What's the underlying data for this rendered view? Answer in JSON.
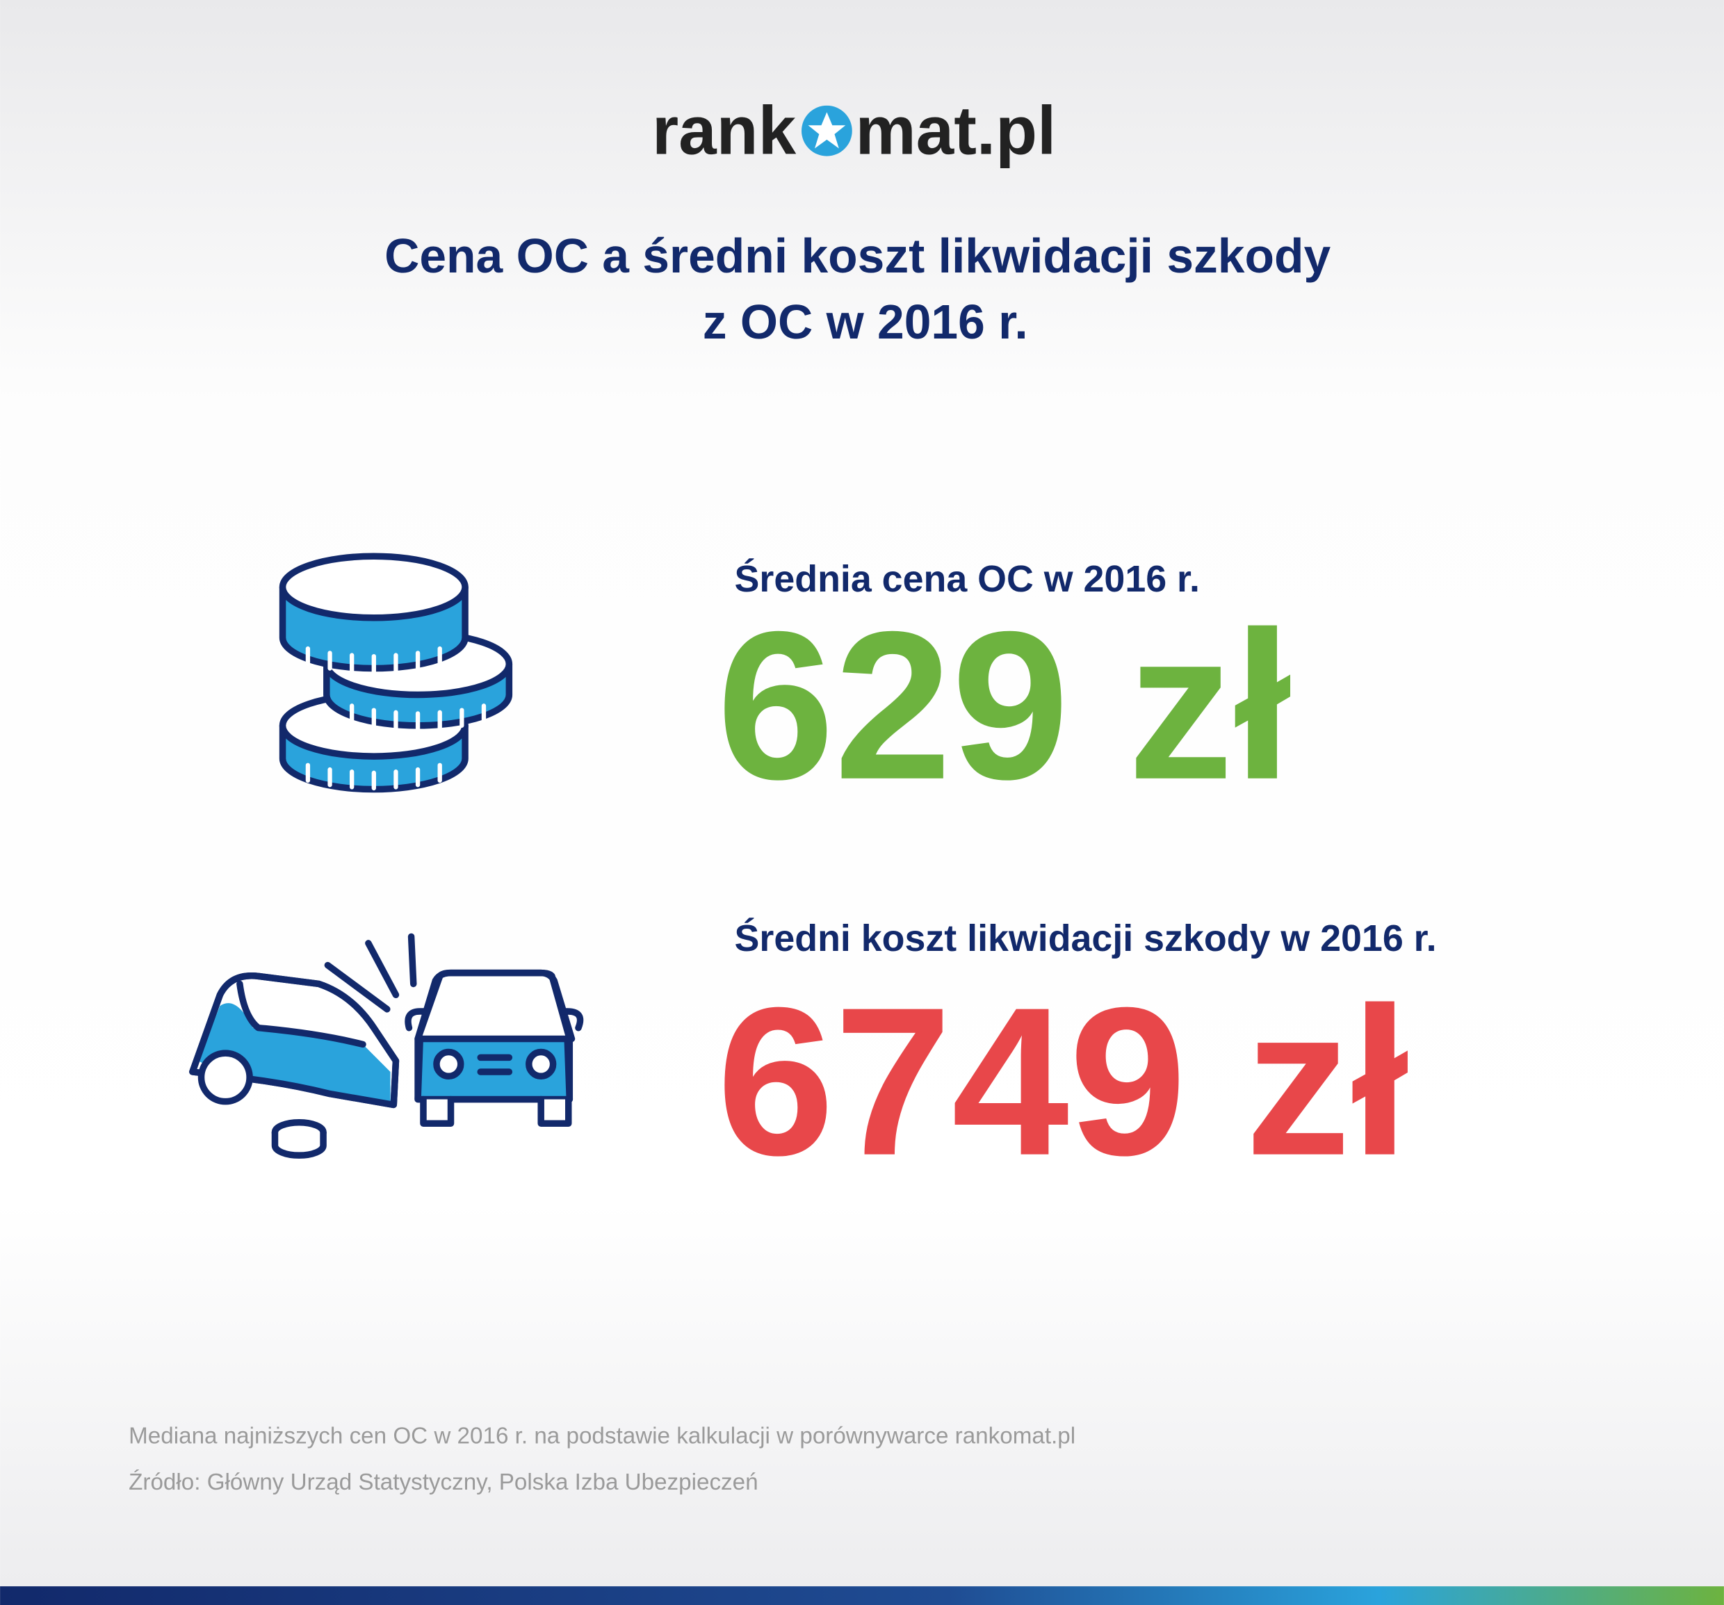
{
  "header": {
    "logo_left": "rank",
    "logo_right": "mat.pl",
    "title": [
      "Cena OC a średni koszt likwidacji szkody",
      "z OC w 2016 r."
    ]
  },
  "stats": [
    {
      "label": "Średnia cena OC w 2016 r.",
      "value": "629 zł"
    },
    {
      "label": "Średni koszt likwidacji szkody w 2016 r.",
      "value": "6749 zł"
    }
  ],
  "footnotes": [
    "Mediana najniższych cen OC w 2016 r. na podstawie kalkulacji w porównywarce rankomat.pl",
    "Źródło: Główny Urząd Statystyczny, Polska Izba Ubezpieczeń"
  ]
}
